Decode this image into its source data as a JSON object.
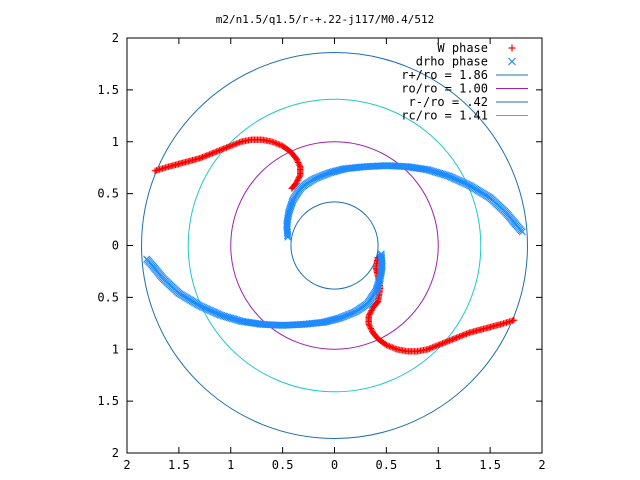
{
  "chart_data": {
    "type": "scatter",
    "title": "m2/n1.5/q1.5/r-+.22-j117/M0.4/512",
    "xlim": [
      -2,
      2
    ],
    "ylim": [
      -2,
      2
    ],
    "x_tick_values": [
      -2,
      -1.5,
      -1,
      -0.5,
      0,
      0.5,
      1,
      1.5,
      2
    ],
    "x_tick_labels": [
      "2",
      "1.5",
      "1",
      "0.5",
      "0",
      "0.5",
      "1",
      "1.5",
      "2"
    ],
    "y_tick_values": [
      2,
      1.5,
      1,
      0.5,
      0,
      -0.5,
      -1,
      -1.5,
      -2
    ],
    "y_tick_labels": [
      "2",
      "1.5",
      "1",
      "0.5",
      "0",
      "0.5",
      "1",
      "1.5",
      "2"
    ],
    "grid": false,
    "legend_position": "top-right",
    "series": [
      {
        "name": "W phase",
        "kind": "points",
        "marker": "+",
        "color": "#ff0000",
        "arms": [
          [
            [
              -1.73,
              0.72
            ],
            [
              -1.6,
              0.76
            ],
            [
              -1.45,
              0.8
            ],
            [
              -1.3,
              0.84
            ],
            [
              -1.15,
              0.9
            ],
            [
              -1.0,
              0.96
            ],
            [
              -0.9,
              1.0
            ],
            [
              -0.8,
              1.02
            ],
            [
              -0.7,
              1.02
            ],
            [
              -0.6,
              1.0
            ],
            [
              -0.5,
              0.96
            ],
            [
              -0.42,
              0.9
            ],
            [
              -0.37,
              0.84
            ],
            [
              -0.33,
              0.76
            ],
            [
              -0.33,
              0.68
            ],
            [
              -0.37,
              0.6
            ],
            [
              -0.42,
              0.54
            ]
          ],
          [
            [
              1.73,
              -0.72
            ],
            [
              1.6,
              -0.76
            ],
            [
              1.45,
              -0.8
            ],
            [
              1.3,
              -0.84
            ],
            [
              1.15,
              -0.9
            ],
            [
              1.0,
              -0.96
            ],
            [
              0.9,
              -1.0
            ],
            [
              0.8,
              -1.02
            ],
            [
              0.7,
              -1.02
            ],
            [
              0.6,
              -1.0
            ],
            [
              0.5,
              -0.96
            ],
            [
              0.42,
              -0.9
            ],
            [
              0.37,
              -0.84
            ],
            [
              0.33,
              -0.76
            ],
            [
              0.33,
              -0.68
            ],
            [
              0.37,
              -0.6
            ],
            [
              0.42,
              -0.54
            ],
            [
              0.44,
              -0.4
            ],
            [
              0.42,
              -0.3
            ],
            [
              0.4,
              -0.22
            ],
            [
              0.42,
              -0.1
            ]
          ]
        ]
      },
      {
        "name": "drho phase",
        "kind": "points",
        "marker": "x",
        "color": "#1e8bff",
        "arms": [
          [
            [
              -0.45,
              0.08
            ],
            [
              -0.46,
              0.2
            ],
            [
              -0.44,
              0.32
            ],
            [
              -0.4,
              0.44
            ],
            [
              -0.32,
              0.56
            ],
            [
              -0.2,
              0.64
            ],
            [
              -0.05,
              0.7
            ],
            [
              0.1,
              0.74
            ],
            [
              0.3,
              0.76
            ],
            [
              0.5,
              0.77
            ],
            [
              0.7,
              0.76
            ],
            [
              0.9,
              0.73
            ],
            [
              1.1,
              0.67
            ],
            [
              1.3,
              0.58
            ],
            [
              1.5,
              0.46
            ],
            [
              1.65,
              0.32
            ],
            [
              1.75,
              0.2
            ],
            [
              1.82,
              0.12
            ]
          ],
          [
            [
              0.45,
              -0.08
            ],
            [
              0.46,
              -0.2
            ],
            [
              0.44,
              -0.32
            ],
            [
              0.4,
              -0.44
            ],
            [
              0.32,
              -0.56
            ],
            [
              0.2,
              -0.64
            ],
            [
              0.05,
              -0.7
            ],
            [
              -0.1,
              -0.74
            ],
            [
              -0.3,
              -0.76
            ],
            [
              -0.5,
              -0.77
            ],
            [
              -0.7,
              -0.76
            ],
            [
              -0.9,
              -0.73
            ],
            [
              -1.1,
              -0.67
            ],
            [
              -1.3,
              -0.58
            ],
            [
              -1.5,
              -0.46
            ],
            [
              -1.65,
              -0.32
            ],
            [
              -1.75,
              -0.2
            ],
            [
              -1.82,
              -0.12
            ]
          ]
        ]
      },
      {
        "name": "r+/ro = 1.86",
        "kind": "circle",
        "radius": 1.86,
        "color": "#1e6fb0"
      },
      {
        "name": "ro/ro = 1.00",
        "kind": "circle",
        "radius": 1.0,
        "color": "#a020b0"
      },
      {
        "name": "r-/ro = .42",
        "kind": "circle",
        "radius": 0.42,
        "color": "#1e6fb0"
      },
      {
        "name": "rc/ro = 1.41",
        "kind": "circle",
        "radius": 1.41,
        "color": "#1ec8c8"
      }
    ]
  }
}
